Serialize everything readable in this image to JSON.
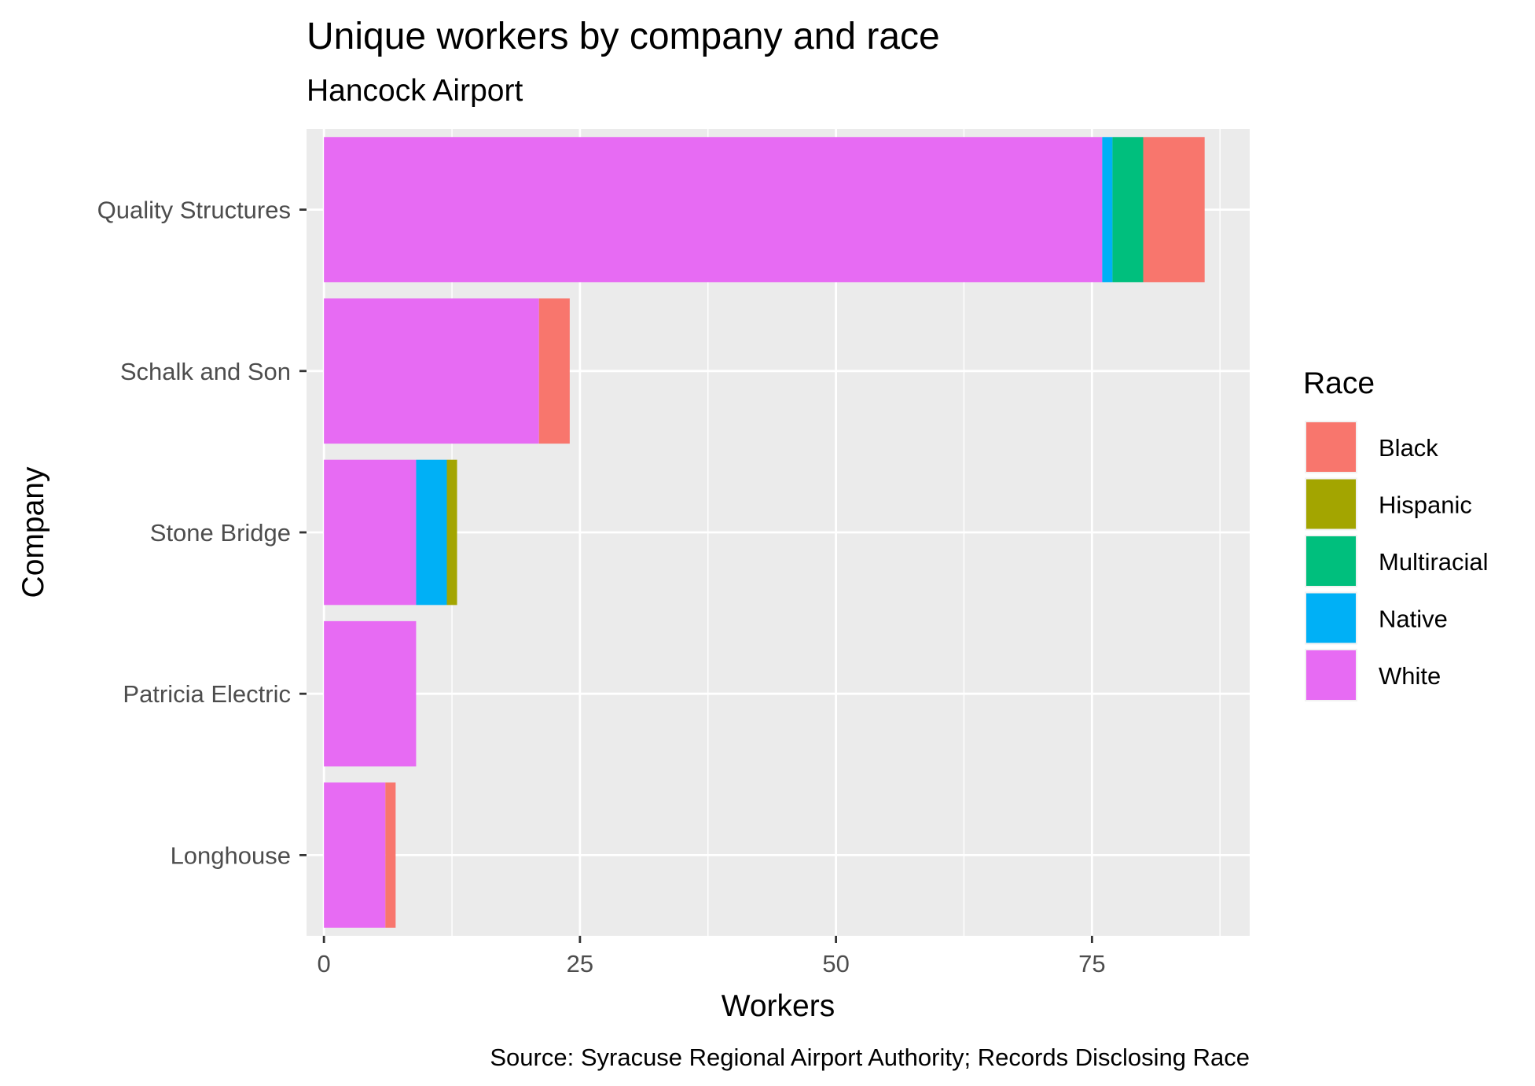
{
  "chart_data": {
    "type": "bar",
    "orientation": "horizontal",
    "stacked": true,
    "title": "Unique workers by company and race",
    "subtitle": "Hancock Airport",
    "xlabel": "Workers",
    "ylabel": "Company",
    "caption": "Source: Syracuse Regional Airport Authority; Records Disclosing Race",
    "xlim": [
      -1.7,
      90.4
    ],
    "x_ticks": [
      0,
      25,
      50,
      75
    ],
    "categories": [
      "Quality Structures",
      "Schalk and Son",
      "Stone Bridge",
      "Patricia Electric",
      "Longhouse"
    ],
    "legend_title": "Race",
    "legend_position": "right",
    "grid": true,
    "series": [
      {
        "name": "White",
        "color": "#E76BF3",
        "values": [
          76,
          21,
          9,
          9,
          6
        ]
      },
      {
        "name": "Native",
        "color": "#00B0F6",
        "values": [
          1,
          0,
          3,
          0,
          0
        ]
      },
      {
        "name": "Multiracial",
        "color": "#00BF7D",
        "values": [
          3,
          0,
          0,
          0,
          0
        ]
      },
      {
        "name": "Hispanic",
        "color": "#A3A500",
        "values": [
          0,
          0,
          1,
          0,
          0
        ]
      },
      {
        "name": "Black",
        "color": "#F8766D",
        "values": [
          6,
          3,
          0,
          0,
          1
        ]
      }
    ],
    "legend_order": [
      "Black",
      "Hispanic",
      "Multiracial",
      "Native",
      "White"
    ]
  }
}
